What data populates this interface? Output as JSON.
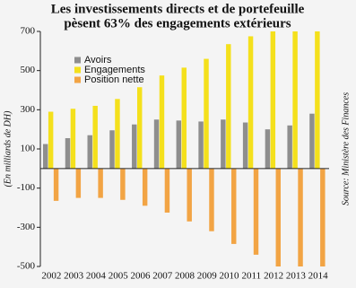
{
  "chart_data": {
    "type": "bar",
    "title": [
      "Les investissements directs et de portefeuille",
      "pèsent 63% des engagements extérieurs"
    ],
    "y_label": "(En milliards de DH)",
    "source": "Source: Ministère des Finances",
    "categories": [
      "2002",
      "2003",
      "2004",
      "2005",
      "2006",
      "2007",
      "2008",
      "2009",
      "2010",
      "2011",
      "2012",
      "2013",
      "2014"
    ],
    "series": [
      {
        "name": "Avoirs",
        "color": "#8e8e8e",
        "values": [
          125,
          155,
          170,
          195,
          225,
          250,
          245,
          240,
          250,
          235,
          200,
          220,
          280
        ]
      },
      {
        "name": "Engagements",
        "color": "#f4e01c",
        "values": [
          290,
          305,
          320,
          355,
          415,
          475,
          515,
          560,
          635,
          675,
          700,
          700,
          700
        ]
      },
      {
        "name": "Position nette",
        "color": "#f2a444",
        "values": [
          -165,
          -150,
          -150,
          -160,
          -190,
          -225,
          -270,
          -320,
          -385,
          -440,
          -500,
          -500,
          -500
        ]
      }
    ],
    "ylim": [
      -500,
      700
    ],
    "yticks": [
      -500,
      -300,
      -100,
      100,
      300,
      500,
      700
    ],
    "legend": "upper-left"
  }
}
